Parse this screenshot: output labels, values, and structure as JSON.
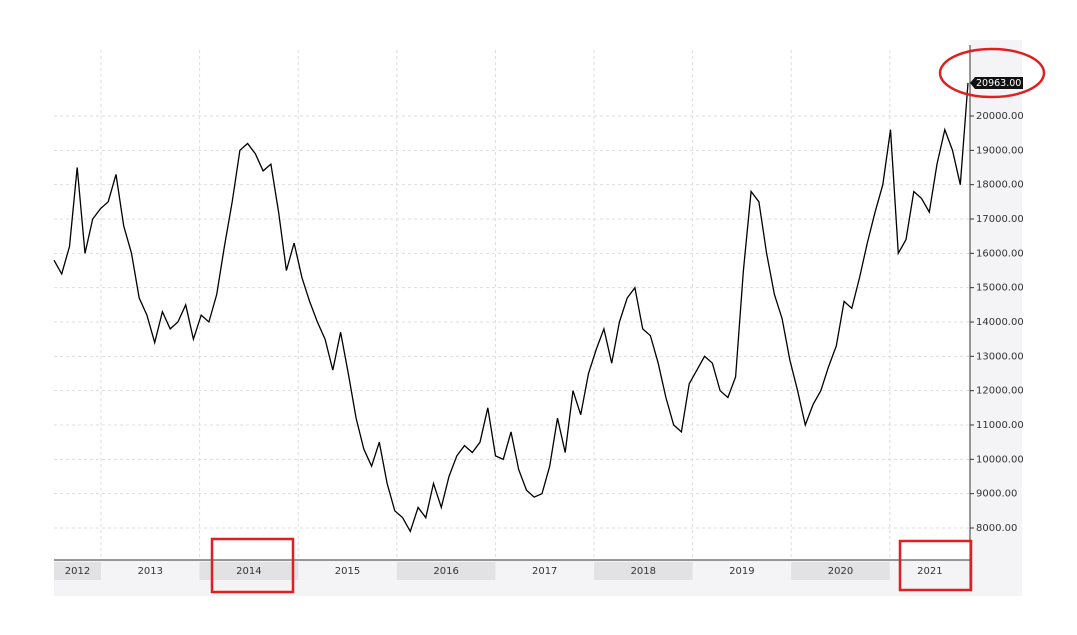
{
  "chart_data": {
    "type": "line",
    "year_bands": [
      "2012",
      "2013",
      "2014",
      "2015",
      "2016",
      "2017",
      "2018",
      "2019",
      "2020",
      "2021"
    ],
    "values": [
      15800,
      15400,
      16200,
      18500,
      16000,
      17000,
      17300,
      17500,
      18300,
      16800,
      16000,
      14700,
      14200,
      13400,
      14300,
      13800,
      14000,
      14500,
      13500,
      14200,
      14000,
      14800,
      16200,
      17500,
      19000,
      19200,
      18900,
      18400,
      18600,
      17200,
      15500,
      16300,
      15300,
      14600,
      14000,
      13500,
      12600,
      13700,
      12500,
      11200,
      10300,
      9800,
      10500,
      9300,
      8500,
      8300,
      7900,
      8600,
      8300,
      9300,
      8600,
      9500,
      10100,
      10400,
      10200,
      10500,
      11500,
      10100,
      10000,
      10800,
      9700,
      9100,
      8900,
      9000,
      9800,
      11200,
      10200,
      12000,
      11300,
      12500,
      13200,
      13800,
      12800,
      14000,
      14700,
      15000,
      13800,
      13600,
      12800,
      11800,
      11000,
      10800,
      12200,
      12600,
      13000,
      12800,
      12000,
      11800,
      12400,
      15500,
      17800,
      17500,
      16000,
      14800,
      14100,
      12900,
      12000,
      11000,
      11600,
      12000,
      12700,
      13300,
      14600,
      14400,
      15300,
      16300,
      17200,
      18000,
      19600,
      16000,
      16400,
      17800,
      17600,
      17200,
      18600,
      19600,
      19000,
      18000,
      20963
    ],
    "color": "#000000",
    "ylim": [
      7100,
      21500
    ],
    "yticks": [
      {
        "value": 8000,
        "label": "8000.00"
      },
      {
        "value": 9000,
        "label": "9000.00"
      },
      {
        "value": 10000,
        "label": "10000.00"
      },
      {
        "value": 11000,
        "label": "11000.00"
      },
      {
        "value": 12000,
        "label": "12000.00"
      },
      {
        "value": 13000,
        "label": "13000.00"
      },
      {
        "value": 14000,
        "label": "14000.00"
      },
      {
        "value": 15000,
        "label": "15000.00"
      },
      {
        "value": 16000,
        "label": "16000.00"
      },
      {
        "value": 17000,
        "label": "17000.00"
      },
      {
        "value": 18000,
        "label": "18000.00"
      },
      {
        "value": 19000,
        "label": "19000.00"
      },
      {
        "value": 20000,
        "label": "20000.00"
      }
    ],
    "last_price_label": "20963.00",
    "grid": true
  }
}
